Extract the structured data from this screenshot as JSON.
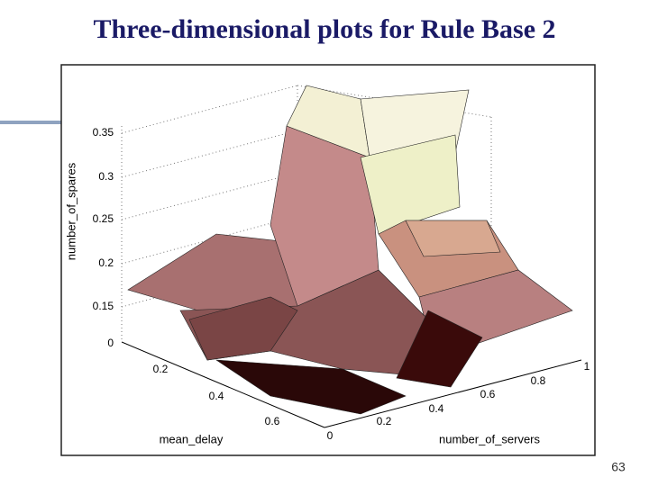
{
  "title": "Three-dimensional plots for Rule Base 2",
  "page_number": "63",
  "figure": {
    "z_label": "number_of_spares",
    "z_ticks": [
      "0.35",
      "0.3",
      "0.25",
      "0.2",
      "0.15",
      "0"
    ],
    "x_label": "mean_delay",
    "x_ticks": [
      "0.2",
      "0.4",
      "0.6"
    ],
    "y_label": "number_of_servers",
    "y_ticks": [
      "0",
      "0.2",
      "0.4",
      "0.6",
      "0.8",
      "1"
    ]
  }
}
